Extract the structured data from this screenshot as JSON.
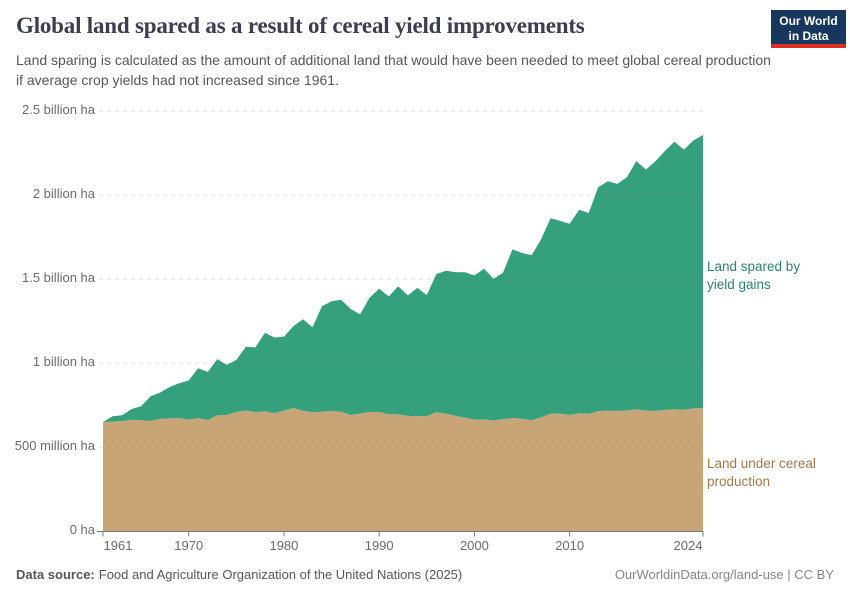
{
  "header": {
    "title": "Global land spared as a result of cereal yield improvements",
    "subtitle": "Land sparing is calculated as the amount of additional land that would have been needed to meet global cereal production if average crop yields had not increased since 1961.",
    "logo": {
      "line1": "Our World",
      "line2": "in Data",
      "bg_color": "#18375e",
      "accent_color": "#dc2e22"
    }
  },
  "chart_data": {
    "type": "area",
    "stacked": true,
    "title": "Global land spared as a result of cereal yield improvements",
    "unit": "million hectares",
    "grid": "horizontal-dashed",
    "legend_position": "right-annotations",
    "ylim": [
      0,
      2500
    ],
    "x": [
      1961,
      1962,
      1963,
      1964,
      1965,
      1966,
      1967,
      1968,
      1969,
      1970,
      1971,
      1972,
      1973,
      1974,
      1975,
      1976,
      1977,
      1978,
      1979,
      1980,
      1981,
      1982,
      1983,
      1984,
      1985,
      1986,
      1987,
      1988,
      1989,
      1990,
      1991,
      1992,
      1993,
      1994,
      1995,
      1996,
      1997,
      1998,
      1999,
      2000,
      2001,
      2002,
      2003,
      2004,
      2005,
      2006,
      2007,
      2008,
      2009,
      2010,
      2011,
      2012,
      2013,
      2014,
      2015,
      2016,
      2017,
      2018,
      2019,
      2020,
      2021,
      2022,
      2023,
      2024
    ],
    "series": [
      {
        "name": "Land under cereal production",
        "color": "#c8a577",
        "label_color": "#a1794a",
        "values": [
          648,
          651,
          655,
          662,
          659,
          655,
          668,
          670,
          672,
          663,
          672,
          661,
          688,
          691,
          708,
          717,
          707,
          713,
          702,
          717,
          732,
          716,
          707,
          711,
          715,
          710,
          691,
          699,
          709,
          708,
          696,
          694,
          685,
          684,
          684,
          707,
          699,
          686,
          674,
          663,
          664,
          657,
          666,
          672,
          668,
          659,
          676,
          699,
          699,
          691,
          701,
          697,
          714,
          716,
          715,
          717,
          724,
          716,
          714,
          720,
          725,
          722,
          730,
          732
        ]
      },
      {
        "name": "Land spared by yield gains",
        "color": "#34a07c",
        "label_color": "#2c8465",
        "values": [
          0,
          32,
          34,
          64,
          84,
          147,
          156,
          187,
          207,
          233,
          297,
          286,
          334,
          298,
          310,
          380,
          386,
          466,
          450,
          440,
          488,
          545,
          506,
          627,
          653,
          667,
          631,
          590,
          680,
          734,
          700,
          763,
          717,
          763,
          720,
          822,
          850,
          855,
          866,
          858,
          897,
          845,
          871,
          1004,
          987,
          982,
          1061,
          1163,
          1147,
          1138,
          1211,
          1196,
          1332,
          1366,
          1351,
          1388,
          1478,
          1436,
          1486,
          1542,
          1592,
          1548,
          1595,
          1625
        ]
      }
    ],
    "y_ticks": [
      {
        "value": 0,
        "label": "0 ha"
      },
      {
        "value": 500,
        "label": "500 million ha"
      },
      {
        "value": 1000,
        "label": "1 billion ha"
      },
      {
        "value": 1500,
        "label": "1.5 billion ha"
      },
      {
        "value": 2000,
        "label": "2 billion ha"
      },
      {
        "value": 2500,
        "label": "2.5 billion ha"
      }
    ],
    "x_ticks": [
      {
        "year": 1961,
        "label": "1961"
      },
      {
        "year": 1970,
        "label": "1970"
      },
      {
        "year": 1980,
        "label": "1980"
      },
      {
        "year": 1990,
        "label": "1990"
      },
      {
        "year": 2000,
        "label": "2000"
      },
      {
        "year": 2010,
        "label": "2010"
      },
      {
        "year": 2024,
        "label": "2024"
      }
    ]
  },
  "footer": {
    "source_label": "Data source:",
    "source_text": "Food and Agriculture Organization of the United Nations (2025)",
    "url": "OurWorldinData.org/land-use",
    "license": " | CC BY"
  }
}
